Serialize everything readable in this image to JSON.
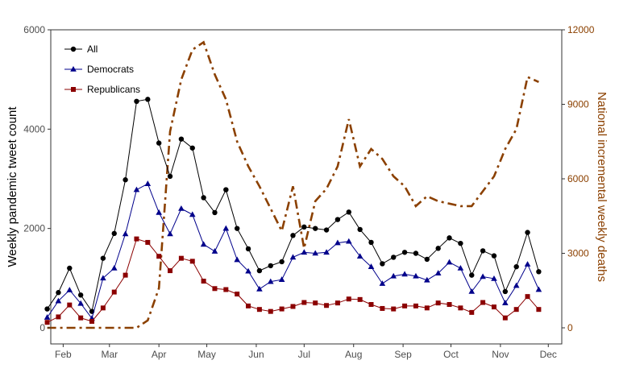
{
  "chart_data": {
    "type": "line",
    "ylabel_left": "Weekly pandemic tweet count",
    "ylabel_right": "National incremental weekly deaths",
    "ylim_left": [
      0,
      6000
    ],
    "ylim_right": [
      0,
      12000
    ],
    "y_ticks_left": [
      "0",
      "2000",
      "4000",
      "6000"
    ],
    "y_ticks_right": [
      "0",
      "3000",
      "6000",
      "9000",
      "12000"
    ],
    "x_ticks": [
      "Feb",
      "Mar",
      "Apr",
      "May",
      "Jun",
      "Jul",
      "Aug",
      "Sep",
      "Oct",
      "Nov",
      "Dec"
    ],
    "legend_position": "top-left",
    "grid": false,
    "x": [
      "2020-01-22",
      "2020-01-29",
      "2020-02-05",
      "2020-02-12",
      "2020-02-19",
      "2020-02-26",
      "2020-03-04",
      "2020-03-11",
      "2020-03-18",
      "2020-03-25",
      "2020-04-01",
      "2020-04-08",
      "2020-04-15",
      "2020-04-22",
      "2020-04-29",
      "2020-05-06",
      "2020-05-13",
      "2020-05-20",
      "2020-05-27",
      "2020-06-03",
      "2020-06-10",
      "2020-06-17",
      "2020-06-24",
      "2020-07-01",
      "2020-07-08",
      "2020-07-15",
      "2020-07-22",
      "2020-07-29",
      "2020-08-05",
      "2020-08-12",
      "2020-08-19",
      "2020-08-26",
      "2020-09-02",
      "2020-09-09",
      "2020-09-16",
      "2020-09-23",
      "2020-09-30",
      "2020-10-07",
      "2020-10-14",
      "2020-10-21",
      "2020-10-28",
      "2020-11-04",
      "2020-11-11",
      "2020-11-18",
      "2020-11-25"
    ],
    "series": [
      {
        "name": "All",
        "axis": "left",
        "color": "#000000",
        "marker": "circle",
        "values": [
          380,
          710,
          1200,
          660,
          330,
          1400,
          1900,
          2980,
          4560,
          4600,
          3720,
          3050,
          3800,
          3620,
          2620,
          2320,
          2780,
          2000,
          1590,
          1150,
          1250,
          1330,
          1860,
          2030,
          2000,
          1970,
          2180,
          2330,
          1980,
          1720,
          1290,
          1420,
          1520,
          1500,
          1380,
          1600,
          1810,
          1700,
          1060,
          1550,
          1450,
          730,
          1230,
          1920,
          1130
        ]
      },
      {
        "name": "Democrats",
        "axis": "left",
        "color": "#00008b",
        "marker": "triangle",
        "values": [
          210,
          540,
          760,
          490,
          190,
          1000,
          1200,
          1890,
          2780,
          2900,
          2320,
          1890,
          2400,
          2280,
          1680,
          1540,
          2000,
          1370,
          1140,
          780,
          930,
          970,
          1420,
          1520,
          1500,
          1520,
          1710,
          1740,
          1440,
          1230,
          890,
          1040,
          1080,
          1040,
          960,
          1100,
          1320,
          1200,
          730,
          1030,
          990,
          500,
          850,
          1280,
          770
        ]
      },
      {
        "name": "Republicans",
        "axis": "left",
        "color": "#8b0000",
        "marker": "square",
        "values": [
          110,
          220,
          460,
          200,
          130,
          400,
          720,
          1060,
          1790,
          1720,
          1440,
          1150,
          1400,
          1340,
          940,
          790,
          770,
          680,
          440,
          370,
          330,
          380,
          430,
          510,
          500,
          450,
          500,
          580,
          570,
          470,
          390,
          380,
          440,
          440,
          400,
          500,
          470,
          400,
          310,
          510,
          420,
          200,
          370,
          630,
          370
        ]
      },
      {
        "name": "National incremental weekly deaths",
        "axis": "right",
        "color": "#8b4000",
        "marker": "none",
        "dash": "dashdot",
        "values": [
          0,
          0,
          0,
          0,
          0,
          0,
          0,
          0,
          0,
          300,
          1600,
          7900,
          10000,
          11200,
          11500,
          10200,
          9200,
          7500,
          6500,
          5700,
          4800,
          3900,
          5700,
          3200,
          5100,
          5600,
          6500,
          8400,
          6500,
          7200,
          6800,
          6100,
          5700,
          4900,
          5300,
          5100,
          5000,
          4900,
          4900,
          5500,
          6100,
          7200,
          8000,
          10100,
          9900
        ]
      }
    ]
  }
}
